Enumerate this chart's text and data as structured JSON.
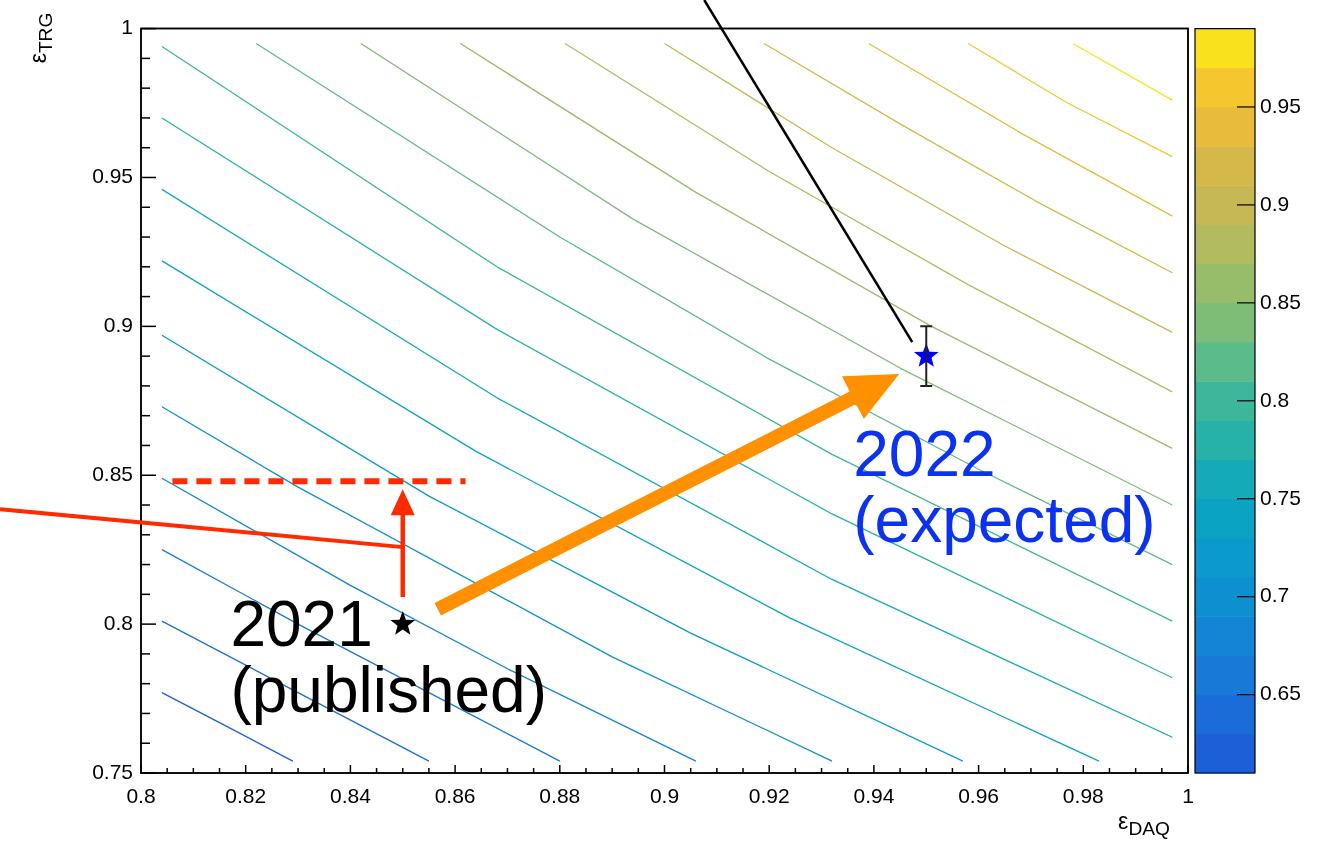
{
  "chart_data": {
    "type": "line",
    "xlabel": "ε$_{DAQ}$",
    "ylabel": "ε$_{TRG}$",
    "marker": "none",
    "xlim": [
      0.8,
      1
    ],
    "ylim": [
      0.75,
      1
    ],
    "clim": [
      0.61,
      0.99
    ],
    "cticks": [
      0.65,
      0.7,
      0.75,
      0.8,
      0.85,
      0.9,
      0.95
    ],
    "xticks": [
      0.8,
      {
        "value": 0.805,
        "label": null
      },
      {
        "value": 0.81,
        "label": null
      },
      {
        "value": 0.815,
        "label": null
      },
      0.82,
      {
        "value": 0.825,
        "label": null
      },
      {
        "value": 0.83,
        "label": null
      },
      {
        "value": 0.835,
        "label": null
      },
      0.84,
      {
        "value": 0.845,
        "label": null
      },
      {
        "value": 0.85,
        "label": null
      },
      {
        "value": 0.855,
        "label": null
      },
      0.86,
      {
        "value": 0.865,
        "label": null
      },
      {
        "value": 0.87,
        "label": null
      },
      {
        "value": 0.875,
        "label": null
      },
      0.88,
      {
        "value": 0.885,
        "label": null
      },
      {
        "value": 0.89,
        "label": null
      },
      {
        "value": 0.895,
        "label": null
      },
      0.9,
      {
        "value": 0.905,
        "label": null
      },
      {
        "value": 0.91,
        "label": null
      },
      {
        "value": 0.915,
        "label": null
      },
      0.92,
      {
        "value": 0.925,
        "label": null
      },
      {
        "value": 0.93,
        "label": null
      },
      {
        "value": 0.935,
        "label": null
      },
      0.94,
      {
        "value": 0.945,
        "label": null
      },
      {
        "value": 0.95,
        "label": null
      },
      {
        "value": 0.955,
        "label": null
      },
      0.96,
      {
        "value": 0.965,
        "label": null
      },
      {
        "value": 0.97,
        "label": null
      },
      {
        "value": 0.975,
        "label": null
      },
      0.98,
      {
        "value": 0.985,
        "label": null
      },
      {
        "value": 0.99,
        "label": null
      },
      {
        "value": 0.995,
        "label": null
      },
      1
    ],
    "yticks": [
      0.75,
      {
        "value": 0.76,
        "label": null
      },
      {
        "value": 0.77,
        "label": null
      },
      {
        "value": 0.78,
        "label": null
      },
      {
        "value": 0.79,
        "label": null
      },
      0.8,
      {
        "value": 0.81,
        "label": null
      },
      {
        "value": 0.82,
        "label": null
      },
      {
        "value": 0.83,
        "label": null
      },
      {
        "value": 0.84,
        "label": null
      },
      0.85,
      {
        "value": 0.86,
        "label": null
      },
      {
        "value": 0.87,
        "label": null
      },
      {
        "value": 0.88,
        "label": null
      },
      {
        "value": 0.89,
        "label": null
      },
      0.9,
      {
        "value": 0.91,
        "label": null
      },
      {
        "value": 0.92,
        "label": null
      },
      {
        "value": 0.93,
        "label": null
      },
      {
        "value": 0.94,
        "label": null
      },
      0.95,
      {
        "value": 0.96,
        "label": null
      },
      {
        "value": 0.97,
        "label": null
      },
      {
        "value": 0.98,
        "label": null
      },
      {
        "value": 0.99,
        "label": null
      },
      1
    ],
    "series": [
      {
        "color": "#1d5fd6",
        "x": [
          0.804,
          0.816,
          0.829
        ],
        "values": [
          0.777,
          0.766,
          0.754
        ]
      },
      {
        "color": "#1a6dd8",
        "x": [
          0.804,
          0.83,
          0.855
        ],
        "values": [
          0.801,
          0.777,
          0.754
        ]
      },
      {
        "color": "#1879d6",
        "x": [
          0.804,
          0.83,
          0.855,
          0.88
        ],
        "values": [
          0.825,
          0.8,
          0.777,
          0.754
        ]
      },
      {
        "color": "#1484d4",
        "x": [
          0.804,
          0.84,
          0.87,
          0.906
        ],
        "values": [
          0.849,
          0.813,
          0.785,
          0.754
        ]
      },
      {
        "color": "#0d8fd0",
        "x": [
          0.804,
          0.83,
          0.89,
          0.932
        ],
        "values": [
          0.873,
          0.846,
          0.789,
          0.754
        ]
      },
      {
        "color": "#0a9acb",
        "x": [
          0.804,
          0.855,
          0.905,
          0.957
        ],
        "values": [
          0.897,
          0.843,
          0.797,
          0.754
        ]
      },
      {
        "color": "#0aa3c3",
        "x": [
          0.804,
          0.864,
          0.924,
          0.983
        ],
        "values": [
          0.922,
          0.858,
          0.802,
          0.754
        ]
      },
      {
        "color": "#14aab8",
        "x": [
          0.804,
          0.868,
          0.932,
          0.997
        ],
        "values": [
          0.946,
          0.876,
          0.815,
          0.762
        ]
      },
      {
        "color": "#27b2a9",
        "x": [
          0.804,
          0.868,
          0.932,
          0.997
        ],
        "values": [
          0.97,
          0.899,
          0.837,
          0.782
        ]
      },
      {
        "color": "#3db79b",
        "x": [
          0.804,
          0.868,
          0.932,
          0.997
        ],
        "values": [
          0.994,
          0.92,
          0.857,
          0.801
        ]
      },
      {
        "color": "#5cbb8a",
        "x": [
          0.822,
          0.88,
          0.92,
          0.96,
          0.997
        ],
        "values": [
          0.995,
          0.93,
          0.889,
          0.852,
          0.82
        ]
      },
      {
        "color": "#7dbd78",
        "x": [
          0.842,
          0.894,
          0.945,
          0.997
        ],
        "values": [
          0.995,
          0.936,
          0.886,
          0.84
        ]
      },
      {
        "color": "#98bd6a",
        "x": [
          0.861,
          0.906,
          0.951,
          0.997
        ],
        "values": [
          0.995,
          0.945,
          0.9,
          0.859
        ]
      },
      {
        "color": "#b2bb5f",
        "x": [
          0.881,
          0.92,
          0.958,
          0.997
        ],
        "values": [
          0.995,
          0.952,
          0.914,
          0.878
        ]
      },
      {
        "color": "#c6b955",
        "x": [
          0.9,
          0.932,
          0.965,
          0.997
        ],
        "values": [
          0.995,
          0.96,
          0.927,
          0.898
        ]
      },
      {
        "color": "#d6b84a",
        "x": [
          0.919,
          0.945,
          0.971,
          0.997
        ],
        "values": [
          0.995,
          0.968,
          0.942,
          0.918
        ]
      },
      {
        "color": "#e8bb3c",
        "x": [
          0.939,
          0.968,
          0.997
        ],
        "values": [
          0.995,
          0.965,
          0.937
        ]
      },
      {
        "color": "#f5c62d",
        "x": [
          0.958,
          0.977,
          0.997
        ],
        "values": [
          0.995,
          0.975,
          0.957
        ]
      },
      {
        "color": "#f9e21d",
        "x": [
          0.978,
          0.997
        ],
        "values": [
          0.995,
          0.976
        ]
      },
      {
        "type": "line",
        "color": "#ff2a00",
        "line_style": "dashed",
        "x": [
          0.806,
          0.862
        ],
        "values": [
          0.848,
          0.848
        ]
      },
      {
        "type": "scatter",
        "marker": "star",
        "color": "#000000",
        "x": [
          0.85
        ],
        "values": [
          0.8
        ]
      },
      {
        "type": "scatter",
        "marker": "star",
        "color": "#0000ff",
        "x": [
          0.95
        ],
        "values": [
          0.89
        ],
        "errors": [
          0.01
        ]
      }
    ],
    "annotations": [
      {
        "text": "2021\n(published)",
        "x": 0.85,
        "y": 0.8
      },
      {
        "text": "2022\n(expected)",
        "x": 0.95,
        "y": 0.89
      }
    ]
  }
}
